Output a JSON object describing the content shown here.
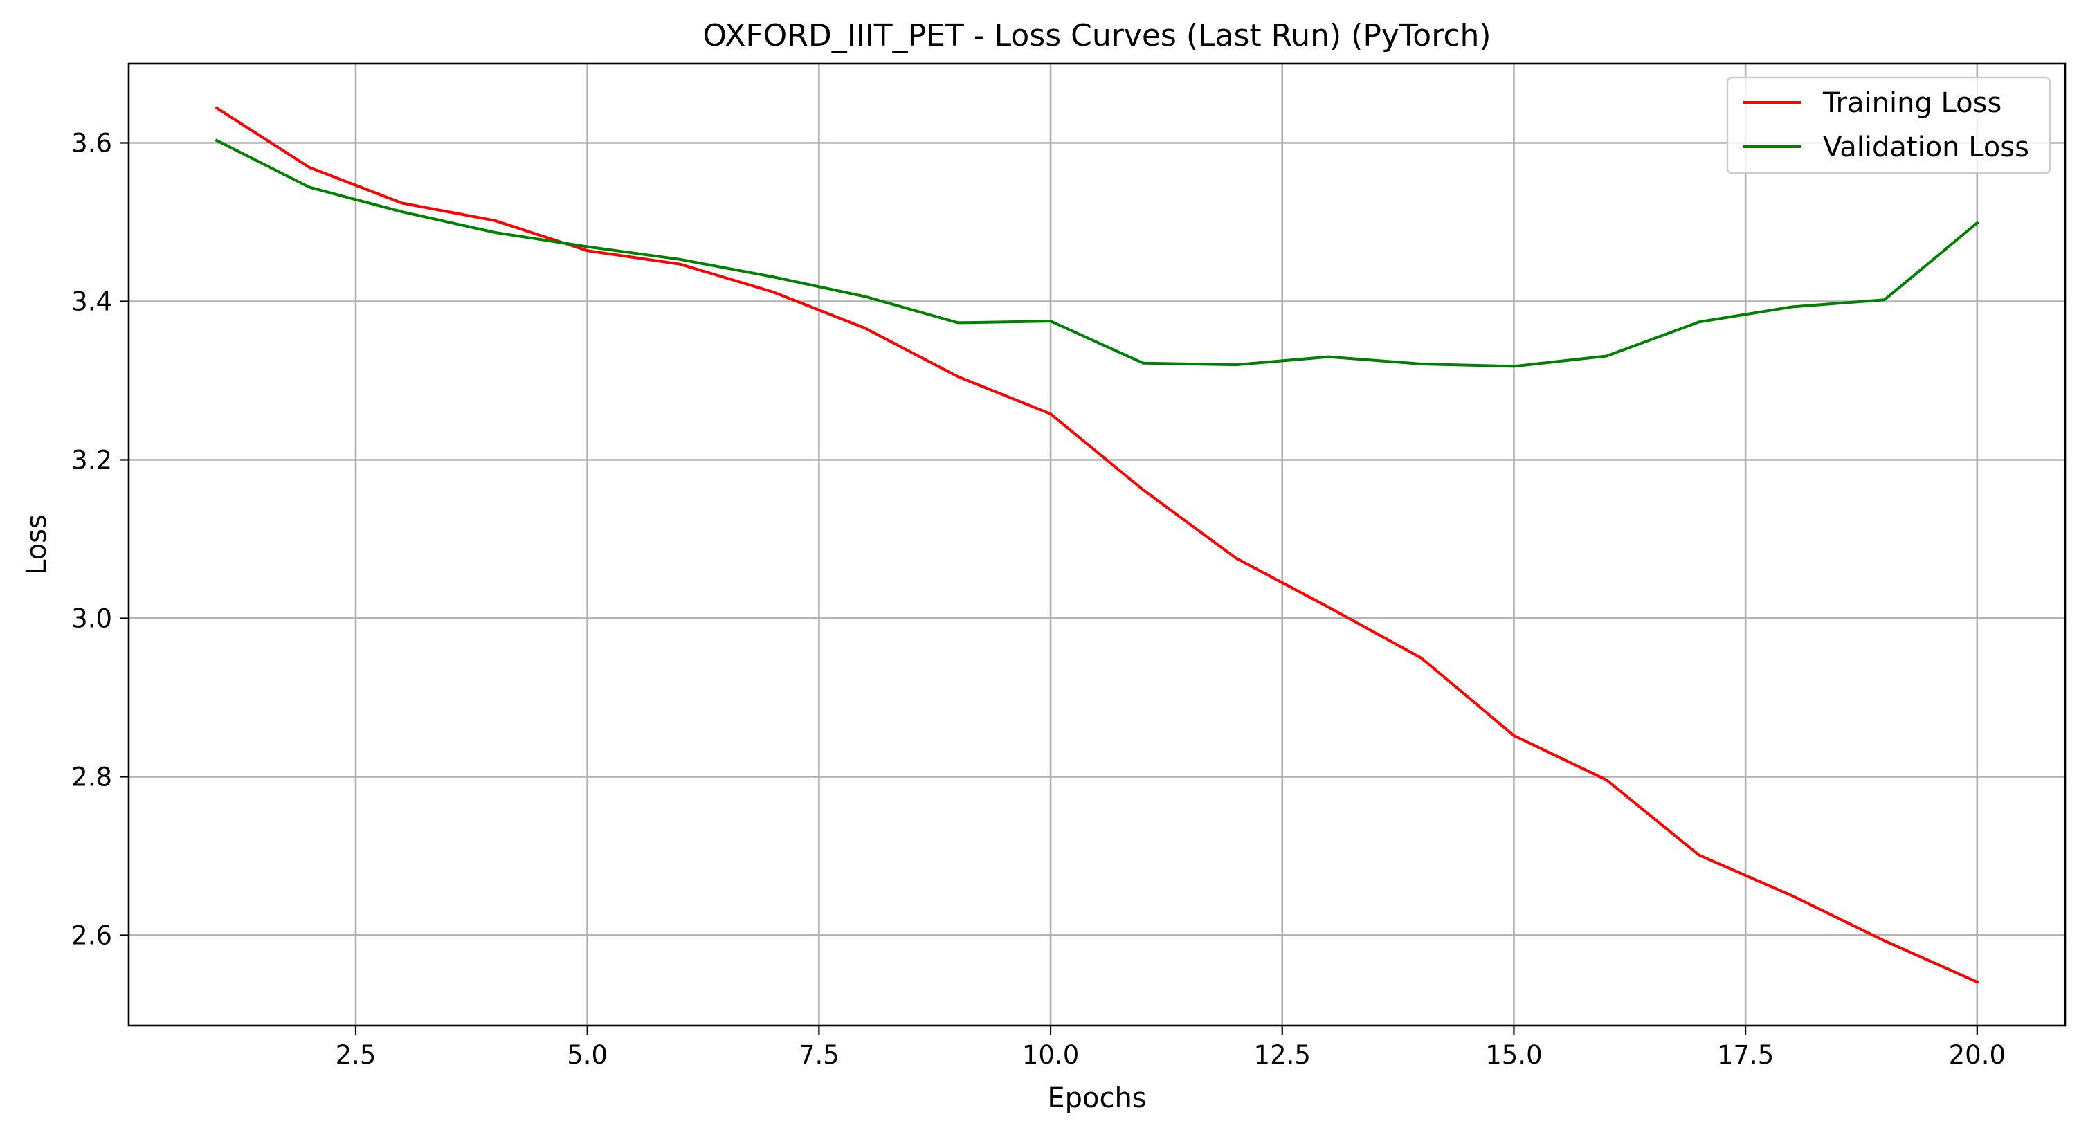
{
  "chart_data": {
    "type": "line",
    "title": "OXFORD_IIIT_PET - Loss Curves (Last Run) (PyTorch)",
    "xlabel": "Epochs",
    "ylabel": "Loss",
    "xlim": [
      0.05,
      20.95
    ],
    "ylim": [
      2.486,
      3.7
    ],
    "xticks": [
      2.5,
      5.0,
      7.5,
      10.0,
      12.5,
      15.0,
      17.5,
      20.0
    ],
    "xtick_labels": [
      "2.5",
      "5.0",
      "7.5",
      "10.0",
      "12.5",
      "15.0",
      "17.5",
      "20.0"
    ],
    "yticks": [
      2.6,
      2.8,
      3.0,
      3.2,
      3.4,
      3.6
    ],
    "ytick_labels": [
      "2.6",
      "2.8",
      "3.0",
      "3.2",
      "3.4",
      "3.6"
    ],
    "grid": true,
    "legend_position": "top-right",
    "x": [
      1,
      2,
      3,
      4,
      5,
      6,
      7,
      8,
      9,
      10,
      11,
      12,
      13,
      14,
      15,
      16,
      17,
      18,
      19,
      20
    ],
    "series": [
      {
        "name": "Training Loss",
        "color": "#ff0000",
        "values": [
          3.644,
          3.569,
          3.524,
          3.502,
          3.464,
          3.447,
          3.412,
          3.366,
          3.305,
          3.258,
          3.162,
          3.076,
          3.014,
          2.95,
          2.852,
          2.796,
          2.701,
          2.65,
          2.593,
          2.541
        ]
      },
      {
        "name": "Validation Loss",
        "color": "#008000",
        "values": [
          3.603,
          3.544,
          3.513,
          3.487,
          3.469,
          3.453,
          3.431,
          3.406,
          3.373,
          3.375,
          3.322,
          3.32,
          3.33,
          3.321,
          3.318,
          3.331,
          3.374,
          3.393,
          3.402,
          3.499
        ]
      }
    ]
  }
}
